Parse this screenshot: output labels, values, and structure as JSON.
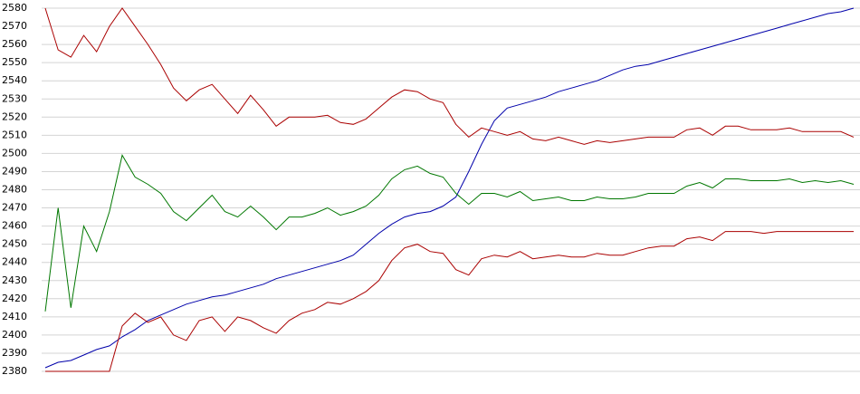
{
  "chart_data": {
    "type": "line",
    "ylim": [
      2380,
      2580
    ],
    "yticks": [
      2380,
      2390,
      2400,
      2410,
      2420,
      2430,
      2440,
      2450,
      2460,
      2470,
      2480,
      2490,
      2500,
      2510,
      2520,
      2530,
      2540,
      2550,
      2560,
      2570,
      2580
    ],
    "grid": true,
    "series": [
      {
        "color": "#0000aa",
        "values": [
          2382,
          2385,
          2386,
          2389,
          2392,
          2394,
          2399,
          2403,
          2408,
          2411,
          2414,
          2417,
          2419,
          2421,
          2422,
          2424,
          2426,
          2428,
          2431,
          2433,
          2435,
          2437,
          2439,
          2441,
          2444,
          2450,
          2456,
          2461,
          2465,
          2467,
          2468,
          2471,
          2476,
          2490,
          2505,
          2518,
          2525,
          2527,
          2529,
          2531,
          2534,
          2536,
          2538,
          2540,
          2543,
          2546,
          2548,
          2549,
          2551,
          2553,
          2555,
          2557,
          2559,
          2561,
          2563,
          2565,
          2567,
          2569,
          2571,
          2573,
          2575,
          2577,
          2578,
          2580
        ]
      },
      {
        "color": "#aa0000",
        "values": [
          2580,
          2557,
          2553,
          2565,
          2556,
          2570,
          2580,
          2570,
          2560,
          2549,
          2536,
          2529,
          2535,
          2538,
          2530,
          2522,
          2532,
          2524,
          2515,
          2520,
          2520,
          2520,
          2521,
          2517,
          2516,
          2519,
          2525,
          2531,
          2535,
          2534,
          2530,
          2528,
          2516,
          2509,
          2514,
          2512,
          2510,
          2512,
          2508,
          2507,
          2509,
          2507,
          2505,
          2507,
          2506,
          2507,
          2508,
          2509,
          2509,
          2509,
          2513,
          2514,
          2510,
          2515,
          2515,
          2513,
          2513,
          2513,
          2514,
          2512,
          2512,
          2512,
          2512,
          2509
        ]
      },
      {
        "color": "#007700",
        "values": [
          2413,
          2470,
          2415,
          2460,
          2446,
          2468,
          2499,
          2487,
          2483,
          2478,
          2468,
          2463,
          2470,
          2477,
          2468,
          2465,
          2471,
          2465,
          2458,
          2465,
          2465,
          2467,
          2470,
          2466,
          2468,
          2471,
          2477,
          2486,
          2491,
          2493,
          2489,
          2487,
          2478,
          2472,
          2478,
          2478,
          2476,
          2479,
          2474,
          2475,
          2476,
          2474,
          2474,
          2476,
          2475,
          2475,
          2476,
          2478,
          2478,
          2478,
          2482,
          2484,
          2481,
          2486,
          2486,
          2485,
          2485,
          2485,
          2486,
          2484,
          2485,
          2484,
          2485,
          2483
        ]
      },
      {
        "color": "#aa0000",
        "values": [
          2380,
          2380,
          2380,
          2380,
          2380,
          2380,
          2405,
          2412,
          2407,
          2410,
          2400,
          2397,
          2408,
          2410,
          2402,
          2410,
          2408,
          2404,
          2401,
          2408,
          2412,
          2414,
          2418,
          2417,
          2420,
          2424,
          2430,
          2441,
          2448,
          2450,
          2446,
          2445,
          2436,
          2433,
          2442,
          2444,
          2443,
          2446,
          2442,
          2443,
          2444,
          2443,
          2443,
          2445,
          2444,
          2444,
          2446,
          2448,
          2449,
          2449,
          2453,
          2454,
          2452,
          2457,
          2457,
          2457,
          2456,
          2457,
          2457,
          2457,
          2457,
          2457,
          2457,
          2457
        ]
      }
    ]
  }
}
